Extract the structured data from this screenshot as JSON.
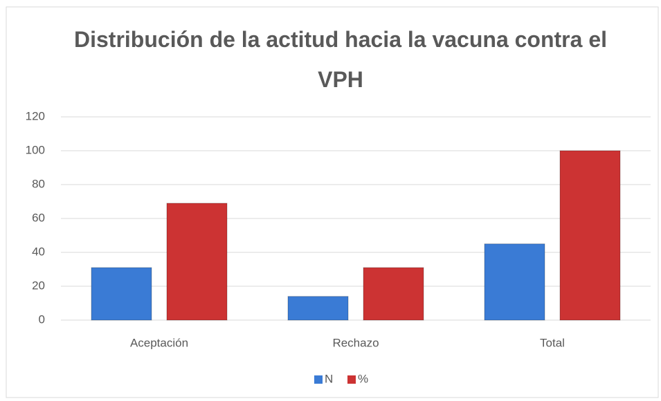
{
  "chart_data": {
    "type": "bar",
    "title": "Distribución de la actitud hacia la vacuna contra el VPH",
    "categories": [
      "Aceptación",
      "Rechazo",
      "Total"
    ],
    "series": [
      {
        "name": "N",
        "color": "#3a7bd5",
        "values": [
          31,
          14,
          45
        ]
      },
      {
        "name": "%",
        "color": "#cc3333",
        "values": [
          69,
          31,
          100
        ]
      }
    ],
    "ylim": [
      0,
      120
    ],
    "yticks": [
      0,
      20,
      40,
      60,
      80,
      100,
      120
    ],
    "grid": true,
    "legend": "bottom"
  }
}
